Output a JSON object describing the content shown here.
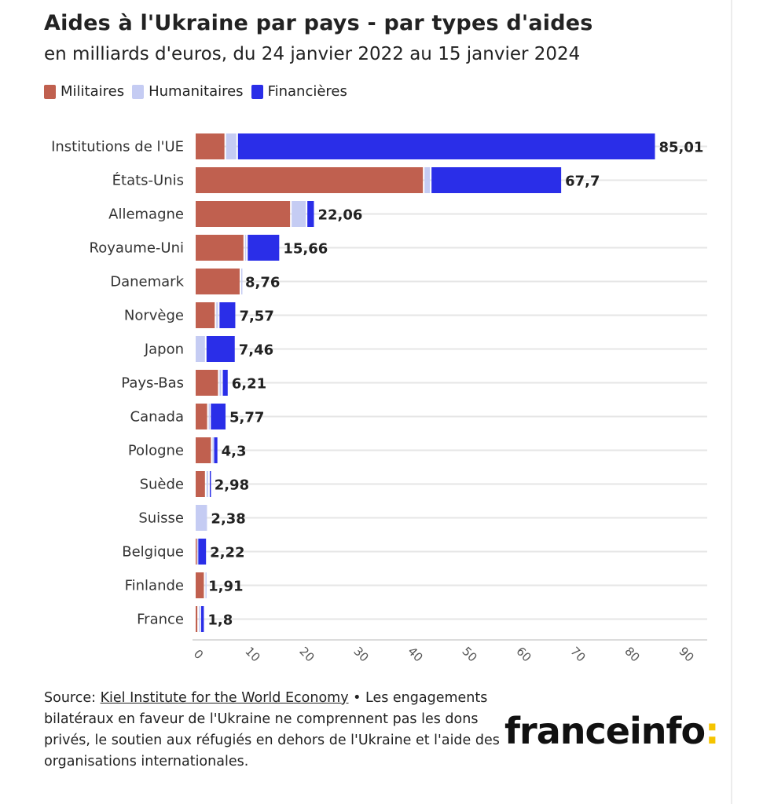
{
  "title": "Aides à l'Ukraine par pays - par types d'aides",
  "subtitle": "en milliards d'euros, du 24 janvier 2022 au 15 janvier 2024",
  "legend": [
    {
      "label": "Militaires",
      "color": "#c0604f"
    },
    {
      "label": "Humanitaires",
      "color": "#c5ccf3"
    },
    {
      "label": "Financières",
      "color": "#2a2ee8"
    }
  ],
  "chart_data": {
    "type": "bar",
    "orientation": "horizontal",
    "stacked": true,
    "categories": [
      "Institutions de l'UE",
      "États-Unis",
      "Allemagne",
      "Royaume-Uni",
      "Danemark",
      "Norvège",
      "Japon",
      "Pays-Bas",
      "Canada",
      "Pologne",
      "Suède",
      "Suisse",
      "Belgique",
      "Finlande",
      "France"
    ],
    "series": [
      {
        "name": "Militaires",
        "color": "#c0604f",
        "values": [
          5.6,
          42.2,
          17.7,
          9.1,
          8.4,
          3.8,
          0,
          4.4,
          2.4,
          3.1,
          2.0,
          0,
          0.3,
          1.8,
          0.6
        ]
      },
      {
        "name": "Humanitaires",
        "color": "#c5ccf3",
        "values": [
          2.2,
          1.3,
          2.9,
          0.5,
          0.3,
          0.6,
          2.0,
          0.6,
          0.4,
          0.3,
          0.6,
          2.38,
          0.2,
          0.1,
          0.4
        ]
      },
      {
        "name": "Financières",
        "color": "#2a2ee8",
        "values": [
          77.2,
          24.2,
          1.5,
          6.1,
          0,
          3.2,
          5.5,
          1.2,
          3.0,
          0.9,
          0.4,
          0,
          1.7,
          0,
          0.8
        ]
      }
    ],
    "totals": [
      "85,01",
      "67,7",
      "22,06",
      "15,66",
      "8,76",
      "7,57",
      "7,46",
      "6,21",
      "5,77",
      "4,3",
      "2,98",
      "2,38",
      "2,22",
      "1,91",
      "1,8"
    ],
    "xlim": [
      0,
      90
    ],
    "xticks": [
      0,
      10,
      20,
      30,
      40,
      50,
      60,
      70,
      80,
      90
    ],
    "grid": true,
    "legend_position": "top-left"
  },
  "footer": {
    "source_prefix": "Source: ",
    "source_name": "Kiel Institute for the World Economy",
    "note": " • Les engagements bilatéraux en faveur de l'Ukraine ne comprennent pas les dons privés, le soutien aux réfugiés en dehors de l'Ukraine et l'aide des organisations internationales."
  },
  "brand": {
    "name": "franceinfo",
    "colon": ":"
  }
}
